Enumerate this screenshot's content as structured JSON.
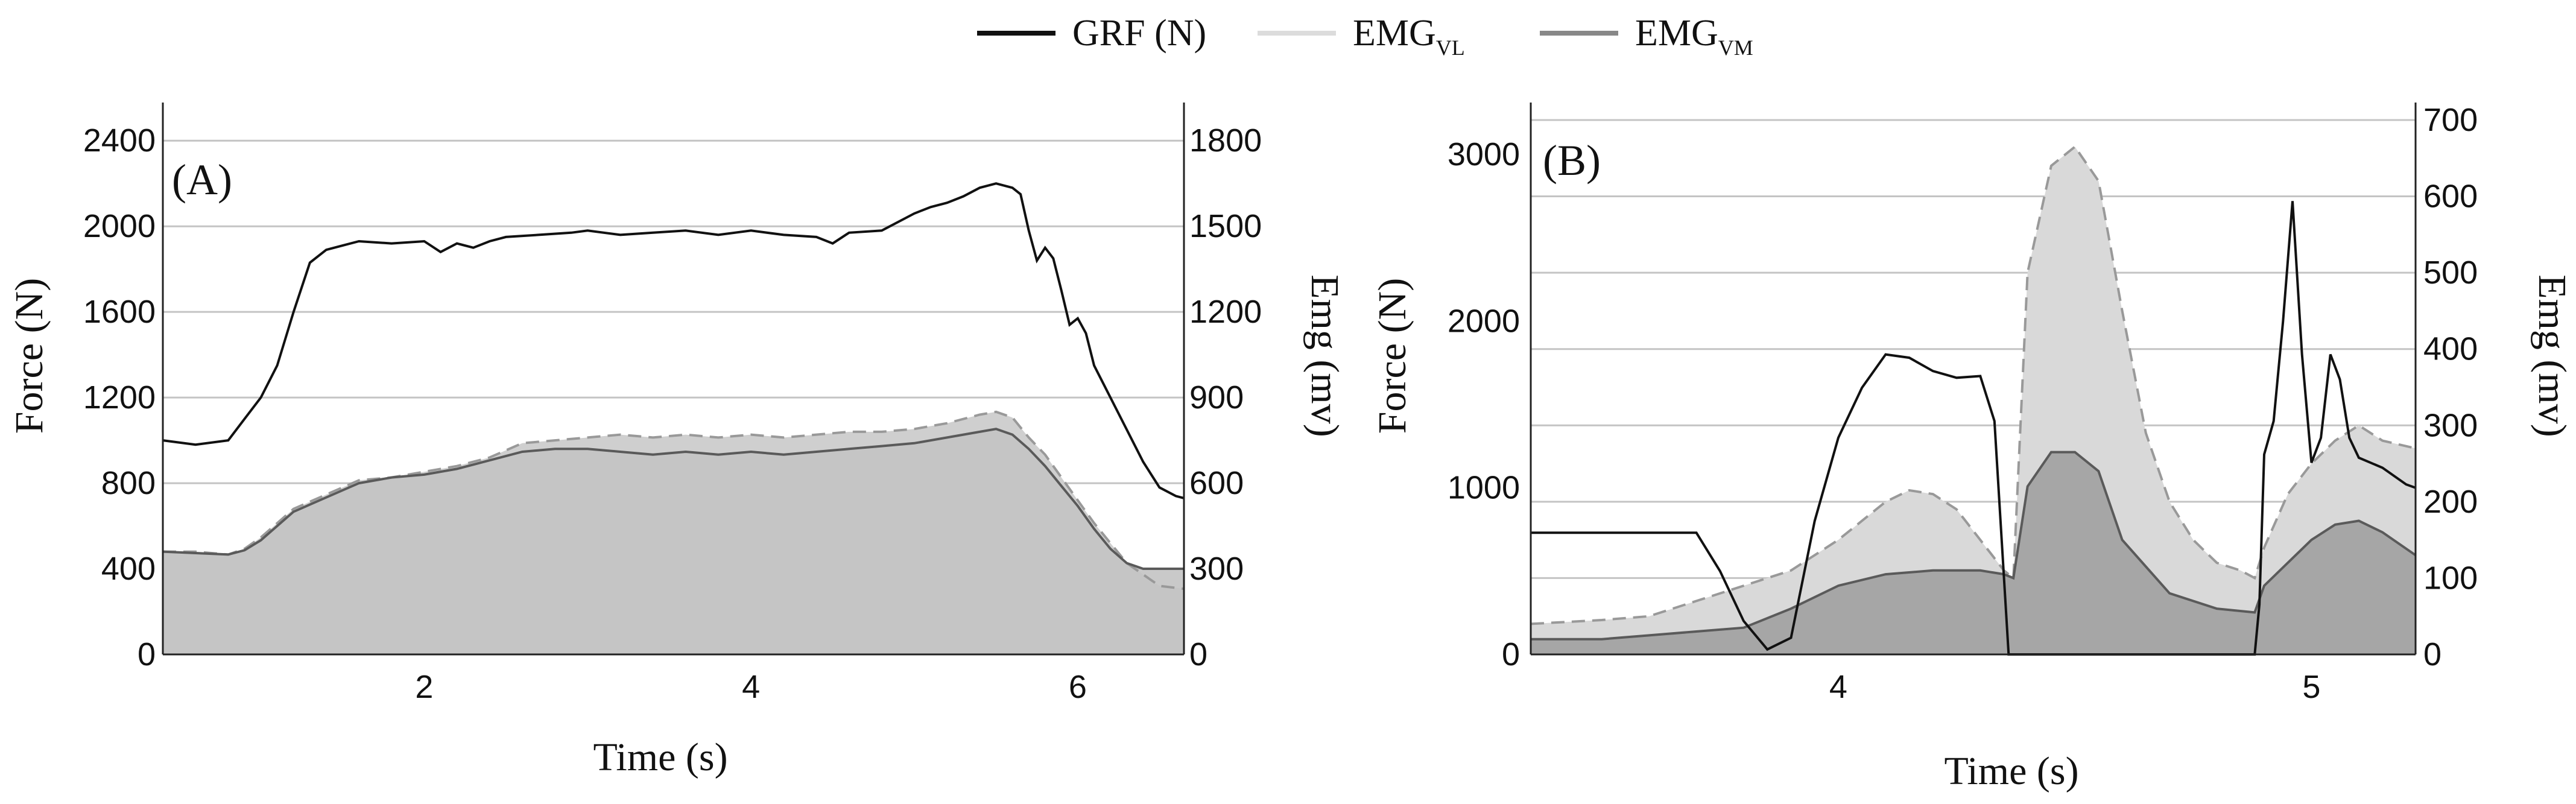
{
  "legend": {
    "items": [
      {
        "label": "GRF (N)",
        "sub": "",
        "color": "#111111"
      },
      {
        "label": "EMG",
        "sub": "VL",
        "color": "#dcdcdc"
      },
      {
        "label": "EMG",
        "sub": "VM",
        "color": "#888888"
      }
    ]
  },
  "chart_data": [
    {
      "type": "line",
      "panel_label": "(A)",
      "xlabel": "Time (s)",
      "ylabel": "Force (N)",
      "ylabel_right": "Emg (mv)",
      "xlim": [
        0.4,
        6.65
      ],
      "ylim": [
        0,
        2550
      ],
      "ylim_right": [
        0,
        1912.5
      ],
      "x_ticks": [
        2,
        4,
        6
      ],
      "y_ticks": [
        0,
        400,
        800,
        1200,
        1600,
        2000,
        2400
      ],
      "y_ticks_right": [
        0,
        300,
        600,
        900,
        1200,
        1500,
        1800
      ],
      "grid": true,
      "legend_position": "top-center",
      "series": [
        {
          "name": "GRF (N)",
          "axis": "left",
          "x": [
            0.4,
            0.6,
            0.8,
            0.9,
            1.0,
            1.1,
            1.2,
            1.3,
            1.4,
            1.5,
            1.6,
            1.8,
            2.0,
            2.1,
            2.2,
            2.3,
            2.4,
            2.5,
            2.7,
            2.9,
            3.0,
            3.2,
            3.4,
            3.6,
            3.8,
            4.0,
            4.2,
            4.4,
            4.5,
            4.6,
            4.8,
            5.0,
            5.1,
            5.2,
            5.3,
            5.4,
            5.5,
            5.6,
            5.65,
            5.7,
            5.75,
            5.8,
            5.85,
            5.9,
            5.95,
            6.0,
            6.05,
            6.1,
            6.2,
            6.3,
            6.4,
            6.5,
            6.6,
            6.65
          ],
          "y": [
            1000,
            980,
            1000,
            1100,
            1200,
            1350,
            1600,
            1830,
            1890,
            1910,
            1930,
            1920,
            1930,
            1880,
            1920,
            1900,
            1930,
            1950,
            1960,
            1970,
            1980,
            1960,
            1970,
            1980,
            1960,
            1980,
            1960,
            1950,
            1920,
            1970,
            1980,
            2060,
            2090,
            2110,
            2140,
            2180,
            2200,
            2180,
            2150,
            1980,
            1840,
            1900,
            1850,
            1700,
            1540,
            1570,
            1500,
            1350,
            1200,
            1050,
            900,
            780,
            740,
            730
          ]
        },
        {
          "name": "EMG VL",
          "axis": "right",
          "x": [
            0.4,
            0.6,
            0.8,
            0.9,
            1.0,
            1.2,
            1.4,
            1.6,
            1.8,
            2.0,
            2.2,
            2.4,
            2.6,
            2.8,
            3.0,
            3.2,
            3.4,
            3.6,
            3.8,
            4.0,
            4.2,
            4.4,
            4.6,
            4.8,
            5.0,
            5.2,
            5.4,
            5.5,
            5.6,
            5.7,
            5.8,
            5.9,
            6.0,
            6.1,
            6.2,
            6.3,
            6.4,
            6.5,
            6.65
          ],
          "y": [
            360,
            360,
            350,
            370,
            410,
            510,
            560,
            610,
            620,
            640,
            660,
            690,
            740,
            750,
            760,
            770,
            760,
            770,
            760,
            770,
            760,
            770,
            780,
            780,
            790,
            810,
            840,
            850,
            830,
            760,
            700,
            620,
            540,
            460,
            390,
            320,
            280,
            240,
            230
          ]
        },
        {
          "name": "EMG VM",
          "axis": "right",
          "x": [
            0.4,
            0.6,
            0.8,
            0.9,
            1.0,
            1.2,
            1.4,
            1.6,
            1.8,
            2.0,
            2.2,
            2.4,
            2.6,
            2.8,
            3.0,
            3.2,
            3.4,
            3.6,
            3.8,
            4.0,
            4.2,
            4.4,
            4.6,
            4.8,
            5.0,
            5.2,
            5.4,
            5.5,
            5.6,
            5.7,
            5.8,
            5.9,
            6.0,
            6.1,
            6.2,
            6.3,
            6.4,
            6.5,
            6.65
          ],
          "y": [
            360,
            355,
            350,
            365,
            400,
            500,
            550,
            600,
            620,
            630,
            650,
            680,
            710,
            720,
            720,
            710,
            700,
            710,
            700,
            710,
            700,
            710,
            720,
            730,
            740,
            760,
            780,
            790,
            770,
            720,
            660,
            590,
            520,
            440,
            370,
            320,
            300,
            300,
            300
          ]
        }
      ]
    },
    {
      "type": "line",
      "panel_label": "(B)",
      "xlabel": "Time (s)",
      "ylabel": "Force (N)",
      "ylabel_right": "Emg (mv)",
      "xlim": [
        3.35,
        5.22
      ],
      "ylim": [
        0,
        3275
      ],
      "ylim_right": [
        0,
        715
      ],
      "x_ticks": [
        4,
        5
      ],
      "y_ticks": [
        0,
        1000,
        2000,
        3000
      ],
      "y_ticks_right": [
        0,
        100,
        200,
        300,
        400,
        500,
        600,
        700
      ],
      "grid": true,
      "series": [
        {
          "name": "GRF (N)",
          "axis": "left",
          "x": [
            3.35,
            3.5,
            3.6,
            3.7,
            3.75,
            3.8,
            3.85,
            3.9,
            3.95,
            4.0,
            4.05,
            4.1,
            4.15,
            4.2,
            4.25,
            4.3,
            4.33,
            4.36,
            4.37,
            4.5,
            4.7,
            4.8,
            4.88,
            4.89,
            4.9,
            4.92,
            4.94,
            4.96,
            4.98,
            5.0,
            5.02,
            5.04,
            5.06,
            5.08,
            5.1,
            5.15,
            5.2,
            5.22
          ],
          "y": [
            730,
            730,
            730,
            730,
            500,
            200,
            30,
            100,
            800,
            1300,
            1600,
            1800,
            1780,
            1700,
            1660,
            1670,
            1400,
            0,
            0,
            0,
            0,
            0,
            0,
            300,
            1200,
            1400,
            2000,
            2720,
            1800,
            1150,
            1300,
            1800,
            1650,
            1300,
            1180,
            1120,
            1020,
            1000
          ]
        },
        {
          "name": "EMG VL",
          "axis": "right",
          "x": [
            3.35,
            3.5,
            3.6,
            3.7,
            3.8,
            3.9,
            4.0,
            4.1,
            4.15,
            4.2,
            4.25,
            4.3,
            4.35,
            4.37,
            4.4,
            4.45,
            4.5,
            4.55,
            4.6,
            4.65,
            4.7,
            4.75,
            4.8,
            4.85,
            4.88,
            4.9,
            4.95,
            5.0,
            5.05,
            5.1,
            5.15,
            5.22
          ],
          "y": [
            40,
            45,
            50,
            70,
            90,
            110,
            150,
            200,
            215,
            210,
            190,
            150,
            110,
            100,
            500,
            640,
            665,
            620,
            450,
            290,
            200,
            150,
            120,
            110,
            100,
            140,
            210,
            250,
            280,
            300,
            280,
            270
          ]
        },
        {
          "name": "EMG VM",
          "axis": "right",
          "x": [
            3.35,
            3.5,
            3.6,
            3.7,
            3.8,
            3.9,
            4.0,
            4.1,
            4.2,
            4.3,
            4.35,
            4.37,
            4.4,
            4.45,
            4.5,
            4.55,
            4.6,
            4.7,
            4.8,
            4.88,
            4.9,
            4.95,
            5.0,
            5.05,
            5.1,
            5.15,
            5.22
          ],
          "y": [
            20,
            20,
            25,
            30,
            35,
            60,
            90,
            105,
            110,
            110,
            105,
            100,
            220,
            265,
            265,
            240,
            150,
            80,
            60,
            55,
            90,
            120,
            150,
            170,
            175,
            160,
            130
          ]
        }
      ]
    }
  ]
}
